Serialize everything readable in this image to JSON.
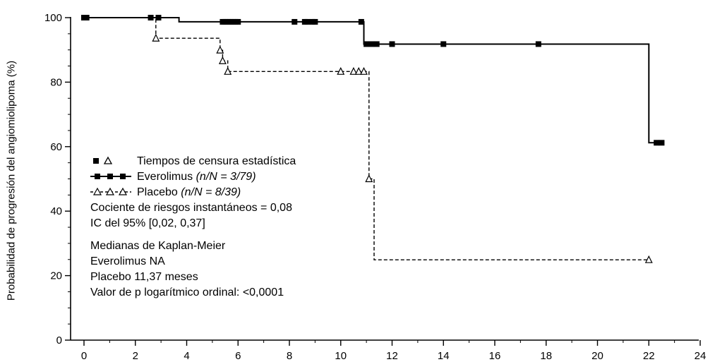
{
  "chart_data": {
    "type": "line",
    "title": "",
    "xlabel": "",
    "ylabel": "Probabilidad de progresión del angiomiolipoma (%)",
    "xlim": [
      0,
      24
    ],
    "ylim": [
      0,
      100
    ],
    "xticks": [
      0,
      2,
      4,
      6,
      8,
      10,
      12,
      14,
      16,
      18,
      20,
      22,
      24
    ],
    "yticks": [
      0,
      20,
      40,
      60,
      80,
      100
    ],
    "grid": false,
    "series": [
      {
        "name": "Everolimus (n/N = 3/79)",
        "style": "solid",
        "color": "#000000",
        "steps": [
          [
            0,
            100
          ],
          [
            3.7,
            100
          ],
          [
            3.7,
            98.7
          ],
          [
            10.9,
            98.7
          ],
          [
            10.9,
            91.8
          ],
          [
            22.0,
            91.8
          ],
          [
            22.0,
            61.2
          ],
          [
            22.5,
            61.2
          ]
        ],
        "censored": [
          0,
          0.1,
          2.6,
          2.9,
          5.4,
          5.5,
          5.6,
          5.7,
          5.8,
          5.9,
          6.0,
          8.2,
          8.6,
          8.7,
          8.9,
          9.0,
          10.8,
          11.0,
          11.2,
          11.4,
          12.0,
          14.0,
          17.7,
          22.3,
          22.5
        ]
      },
      {
        "name": "Placebo (n/N = 8/39)",
        "style": "dashed",
        "color": "#000000",
        "steps": [
          [
            0,
            100
          ],
          [
            2.8,
            100
          ],
          [
            2.8,
            93.6
          ],
          [
            5.3,
            93.6
          ],
          [
            5.3,
            89.9
          ],
          [
            5.4,
            89.9
          ],
          [
            5.4,
            86.6
          ],
          [
            5.6,
            86.6
          ],
          [
            5.6,
            83.3
          ],
          [
            11.1,
            83.3
          ],
          [
            11.1,
            50.0
          ],
          [
            11.3,
            50.0
          ],
          [
            11.3,
            24.9
          ],
          [
            22.0,
            24.9
          ]
        ],
        "censored": [
          2.8,
          5.3,
          5.4,
          5.6,
          10.0,
          10.5,
          10.7,
          10.9,
          11.1,
          22.0
        ]
      }
    ],
    "legend": {
      "placement": "center-left",
      "censor_label": "Tiempos de censura estadística",
      "everolimus_name": "Everolimus",
      "everolimus_n": "(n/N = 3/79)",
      "placebo_name": "Placebo",
      "placebo_n": "(n/N = 8/39)"
    },
    "annotations": {
      "hazard_ratio": "Cociente de riesgos instantáneos = 0,08",
      "ci": "IC del 95% [0,02, 0,37]",
      "km_title": "Medianas de Kaplan-Meier",
      "km_everolimus": "Everolimus NA",
      "km_placebo": "Placebo 11,37 meses",
      "logrank": "Valor de p logarítmico ordinal: <0,0001"
    }
  }
}
